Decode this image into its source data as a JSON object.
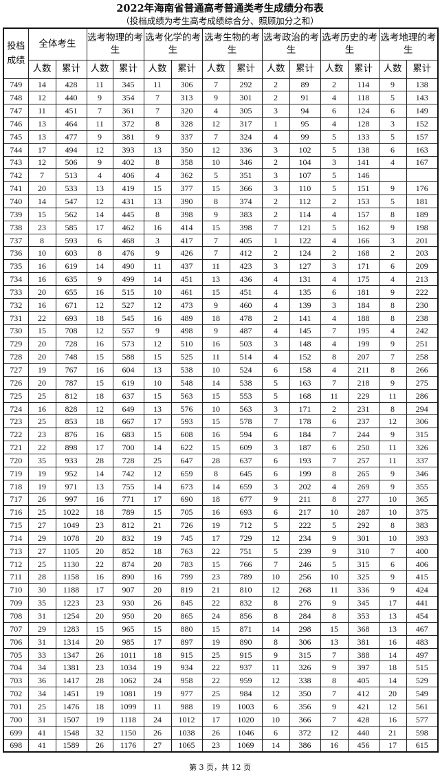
{
  "title": "2022年海南省普通高考普通类考生成绩分布表",
  "subtitle": "（投档成绩为考生高考成绩综合分、照顾加分之和）",
  "header": {
    "score": "投档成绩",
    "groups": [
      "全体考生",
      "选考物理的考生",
      "选考化学的考生",
      "选考生物的考生",
      "选考政治的考生",
      "选考历史的考生",
      "选考地理的考生"
    ],
    "count_label": "人数",
    "cumulative_label": "累计"
  },
  "rows": [
    [
      "749",
      "14",
      "428",
      "11",
      "345",
      "11",
      "306",
      "7",
      "292",
      "2",
      "89",
      "2",
      "114",
      "9",
      "138"
    ],
    [
      "748",
      "12",
      "440",
      "9",
      "354",
      "7",
      "313",
      "9",
      "301",
      "2",
      "91",
      "4",
      "118",
      "5",
      "143"
    ],
    [
      "747",
      "11",
      "451",
      "7",
      "361",
      "7",
      "320",
      "4",
      "305",
      "3",
      "94",
      "6",
      "124",
      "6",
      "149"
    ],
    [
      "746",
      "13",
      "464",
      "11",
      "372",
      "8",
      "328",
      "12",
      "317",
      "1",
      "95",
      "4",
      "128",
      "3",
      "152"
    ],
    [
      "745",
      "13",
      "477",
      "9",
      "381",
      "9",
      "337",
      "7",
      "324",
      "4",
      "99",
      "5",
      "133",
      "5",
      "157"
    ],
    [
      "744",
      "17",
      "494",
      "12",
      "393",
      "13",
      "350",
      "12",
      "336",
      "3",
      "102",
      "5",
      "138",
      "6",
      "163"
    ],
    [
      "743",
      "12",
      "506",
      "9",
      "402",
      "8",
      "358",
      "10",
      "346",
      "2",
      "104",
      "3",
      "141",
      "4",
      "167"
    ],
    [
      "742",
      "7",
      "513",
      "4",
      "406",
      "4",
      "362",
      "5",
      "351",
      "3",
      "107",
      "5",
      "146",
      "",
      ""
    ],
    [
      "741",
      "20",
      "533",
      "13",
      "419",
      "15",
      "377",
      "15",
      "366",
      "3",
      "110",
      "5",
      "151",
      "9",
      "176"
    ],
    [
      "740",
      "14",
      "547",
      "12",
      "431",
      "13",
      "390",
      "8",
      "374",
      "2",
      "112",
      "2",
      "153",
      "5",
      "181"
    ],
    [
      "739",
      "15",
      "562",
      "14",
      "445",
      "8",
      "398",
      "9",
      "383",
      "2",
      "114",
      "4",
      "157",
      "8",
      "189"
    ],
    [
      "738",
      "23",
      "585",
      "17",
      "462",
      "16",
      "414",
      "15",
      "398",
      "7",
      "121",
      "5",
      "162",
      "9",
      "198"
    ],
    [
      "737",
      "8",
      "593",
      "6",
      "468",
      "3",
      "417",
      "7",
      "405",
      "1",
      "122",
      "4",
      "166",
      "3",
      "201"
    ],
    [
      "736",
      "10",
      "603",
      "8",
      "476",
      "9",
      "426",
      "7",
      "412",
      "2",
      "124",
      "2",
      "168",
      "2",
      "203"
    ],
    [
      "735",
      "16",
      "619",
      "14",
      "490",
      "11",
      "437",
      "11",
      "423",
      "3",
      "127",
      "3",
      "171",
      "6",
      "209"
    ],
    [
      "734",
      "16",
      "635",
      "9",
      "499",
      "14",
      "451",
      "13",
      "436",
      "4",
      "131",
      "4",
      "175",
      "4",
      "213"
    ],
    [
      "733",
      "20",
      "655",
      "16",
      "515",
      "10",
      "461",
      "15",
      "451",
      "4",
      "135",
      "6",
      "181",
      "9",
      "222"
    ],
    [
      "732",
      "16",
      "671",
      "12",
      "527",
      "12",
      "473",
      "9",
      "460",
      "4",
      "139",
      "3",
      "184",
      "8",
      "230"
    ],
    [
      "731",
      "22",
      "693",
      "18",
      "545",
      "16",
      "489",
      "18",
      "478",
      "2",
      "141",
      "4",
      "188",
      "8",
      "238"
    ],
    [
      "730",
      "15",
      "708",
      "12",
      "557",
      "9",
      "498",
      "9",
      "487",
      "4",
      "145",
      "7",
      "195",
      "4",
      "242"
    ],
    [
      "729",
      "20",
      "728",
      "16",
      "573",
      "12",
      "510",
      "16",
      "503",
      "3",
      "148",
      "4",
      "199",
      "9",
      "251"
    ],
    [
      "728",
      "20",
      "748",
      "15",
      "588",
      "15",
      "525",
      "11",
      "514",
      "4",
      "152",
      "8",
      "207",
      "7",
      "258"
    ],
    [
      "727",
      "19",
      "767",
      "16",
      "604",
      "13",
      "538",
      "10",
      "524",
      "6",
      "158",
      "4",
      "211",
      "8",
      "266"
    ],
    [
      "726",
      "20",
      "787",
      "15",
      "619",
      "10",
      "548",
      "14",
      "538",
      "5",
      "163",
      "7",
      "218",
      "9",
      "275"
    ],
    [
      "725",
      "25",
      "812",
      "18",
      "637",
      "15",
      "563",
      "15",
      "553",
      "5",
      "168",
      "11",
      "229",
      "11",
      "286"
    ],
    [
      "724",
      "16",
      "828",
      "12",
      "649",
      "13",
      "576",
      "10",
      "563",
      "3",
      "171",
      "2",
      "231",
      "8",
      "294"
    ],
    [
      "723",
      "25",
      "853",
      "18",
      "667",
      "17",
      "593",
      "15",
      "578",
      "7",
      "178",
      "6",
      "237",
      "12",
      "306"
    ],
    [
      "722",
      "23",
      "876",
      "16",
      "683",
      "15",
      "608",
      "16",
      "594",
      "6",
      "184",
      "7",
      "244",
      "9",
      "315"
    ],
    [
      "721",
      "22",
      "898",
      "17",
      "700",
      "14",
      "622",
      "15",
      "609",
      "3",
      "187",
      "6",
      "250",
      "11",
      "326"
    ],
    [
      "720",
      "35",
      "933",
      "28",
      "728",
      "25",
      "647",
      "28",
      "637",
      "6",
      "193",
      "7",
      "257",
      "11",
      "337"
    ],
    [
      "719",
      "19",
      "952",
      "14",
      "742",
      "12",
      "659",
      "8",
      "645",
      "6",
      "199",
      "8",
      "265",
      "9",
      "346"
    ],
    [
      "718",
      "19",
      "971",
      "13",
      "755",
      "14",
      "673",
      "14",
      "659",
      "3",
      "202",
      "4",
      "269",
      "9",
      "355"
    ],
    [
      "717",
      "26",
      "997",
      "16",
      "771",
      "17",
      "690",
      "18",
      "677",
      "9",
      "211",
      "8",
      "277",
      "10",
      "365"
    ],
    [
      "716",
      "25",
      "1022",
      "18",
      "789",
      "15",
      "705",
      "16",
      "693",
      "6",
      "217",
      "10",
      "287",
      "10",
      "375"
    ],
    [
      "715",
      "27",
      "1049",
      "23",
      "812",
      "21",
      "726",
      "19",
      "712",
      "5",
      "222",
      "5",
      "292",
      "8",
      "383"
    ],
    [
      "714",
      "29",
      "1078",
      "20",
      "832",
      "19",
      "745",
      "17",
      "729",
      "12",
      "234",
      "9",
      "301",
      "10",
      "393"
    ],
    [
      "713",
      "27",
      "1105",
      "20",
      "852",
      "18",
      "763",
      "22",
      "751",
      "5",
      "239",
      "9",
      "310",
      "7",
      "400"
    ],
    [
      "712",
      "25",
      "1130",
      "22",
      "874",
      "20",
      "783",
      "15",
      "766",
      "7",
      "246",
      "5",
      "315",
      "6",
      "406"
    ],
    [
      "711",
      "28",
      "1158",
      "16",
      "890",
      "16",
      "799",
      "23",
      "789",
      "10",
      "256",
      "10",
      "325",
      "9",
      "415"
    ],
    [
      "710",
      "30",
      "1188",
      "17",
      "907",
      "20",
      "819",
      "21",
      "810",
      "12",
      "268",
      "11",
      "336",
      "9",
      "424"
    ],
    [
      "709",
      "35",
      "1223",
      "23",
      "930",
      "26",
      "845",
      "22",
      "832",
      "8",
      "276",
      "9",
      "345",
      "17",
      "441"
    ],
    [
      "708",
      "31",
      "1254",
      "20",
      "950",
      "20",
      "865",
      "24",
      "856",
      "8",
      "284",
      "8",
      "353",
      "13",
      "454"
    ],
    [
      "707",
      "29",
      "1283",
      "15",
      "965",
      "15",
      "880",
      "15",
      "871",
      "14",
      "298",
      "15",
      "368",
      "13",
      "467"
    ],
    [
      "706",
      "31",
      "1314",
      "20",
      "985",
      "17",
      "897",
      "19",
      "890",
      "8",
      "306",
      "13",
      "381",
      "16",
      "483"
    ],
    [
      "705",
      "33",
      "1347",
      "26",
      "1011",
      "18",
      "915",
      "25",
      "915",
      "9",
      "315",
      "7",
      "388",
      "14",
      "497"
    ],
    [
      "704",
      "34",
      "1381",
      "23",
      "1034",
      "19",
      "934",
      "22",
      "937",
      "11",
      "326",
      "9",
      "397",
      "18",
      "515"
    ],
    [
      "703",
      "36",
      "1417",
      "28",
      "1062",
      "24",
      "958",
      "22",
      "959",
      "12",
      "338",
      "8",
      "405",
      "14",
      "529"
    ],
    [
      "702",
      "34",
      "1451",
      "19",
      "1081",
      "19",
      "977",
      "25",
      "984",
      "12",
      "350",
      "7",
      "412",
      "20",
      "549"
    ],
    [
      "701",
      "25",
      "1476",
      "18",
      "1099",
      "11",
      "988",
      "19",
      "1003",
      "6",
      "356",
      "9",
      "421",
      "12",
      "561"
    ],
    [
      "700",
      "31",
      "1507",
      "19",
      "1118",
      "24",
      "1012",
      "17",
      "1020",
      "10",
      "366",
      "7",
      "428",
      "16",
      "577"
    ],
    [
      "699",
      "41",
      "1548",
      "32",
      "1150",
      "26",
      "1038",
      "26",
      "1046",
      "6",
      "372",
      "12",
      "440",
      "21",
      "598"
    ],
    [
      "698",
      "41",
      "1589",
      "26",
      "1176",
      "27",
      "1065",
      "23",
      "1069",
      "14",
      "386",
      "16",
      "456",
      "17",
      "615"
    ]
  ],
  "footer": "第 3 页，共 12 页"
}
